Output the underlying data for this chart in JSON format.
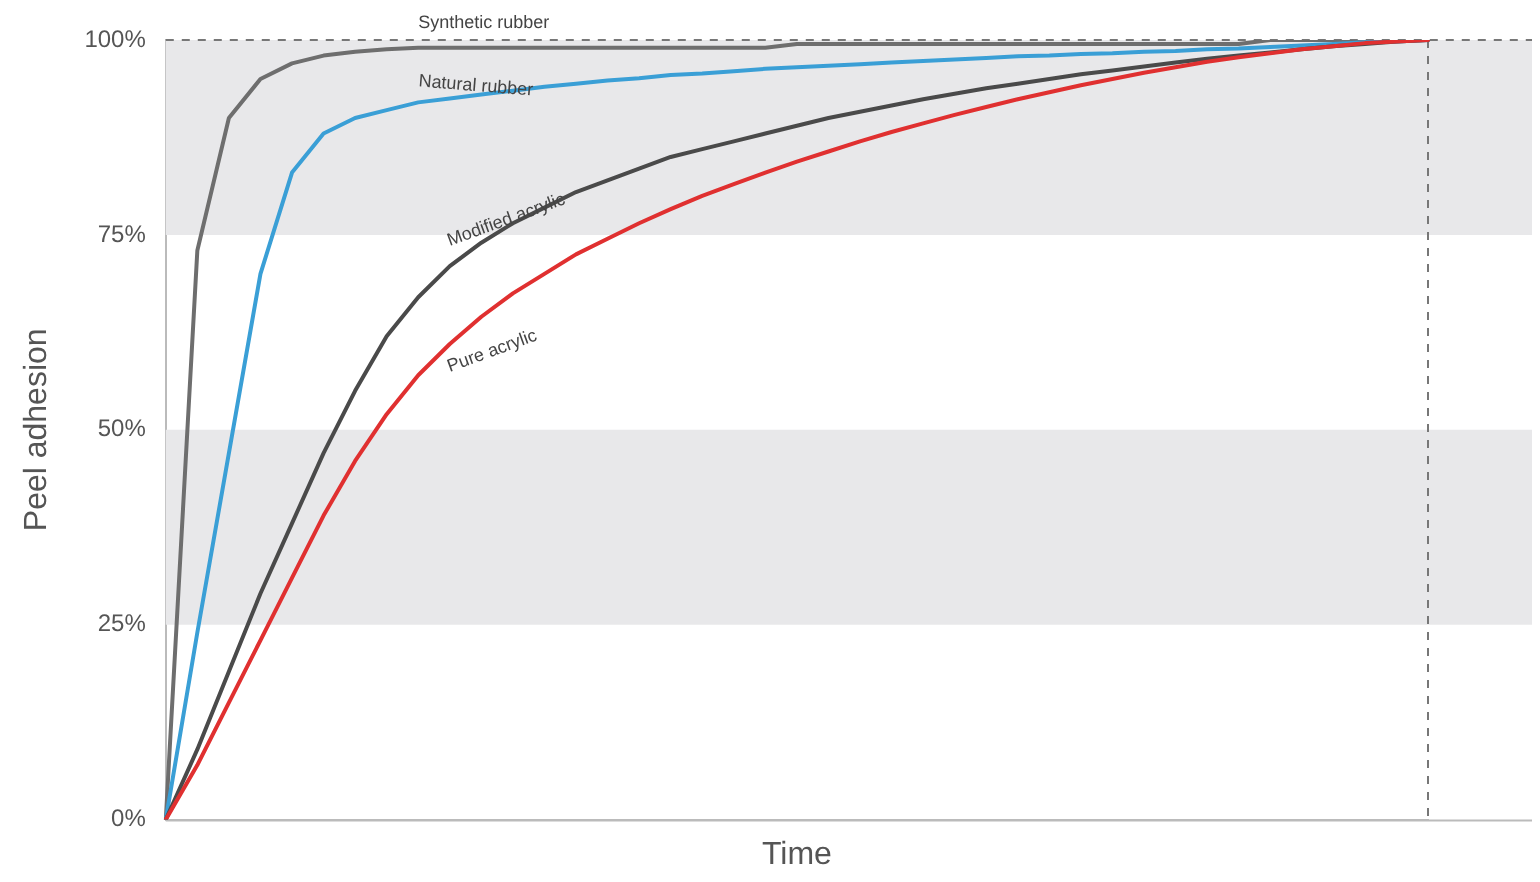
{
  "chart_data": {
    "type": "line",
    "xlabel": "Time",
    "ylabel": "Peel adhesion",
    "categories": [
      null,
      null,
      null,
      null,
      null,
      null,
      null,
      null,
      null,
      null,
      null,
      null,
      null,
      null,
      null,
      null,
      null,
      null,
      null,
      null,
      null,
      null,
      null,
      null,
      null,
      null,
      null,
      null,
      null,
      null,
      null,
      null,
      null,
      null,
      null,
      null,
      null,
      null,
      null,
      null,
      null
    ],
    "ylim": [
      0,
      100
    ],
    "yticks": [
      {
        "value": 0,
        "label": "0%"
      },
      {
        "value": 25,
        "label": "25%"
      },
      {
        "value": 50,
        "label": "50%"
      },
      {
        "value": 75,
        "label": "75%"
      },
      {
        "value": 100,
        "label": "100%"
      }
    ],
    "tick_labels": "y",
    "grid": false,
    "legend": false,
    "marker": "none",
    "line_style": "solid",
    "bands": [
      {
        "axis": "y",
        "from": 25,
        "to": 50,
        "color": "#e8e8ea"
      },
      {
        "axis": "y",
        "from": 75,
        "to": 100,
        "color": "#e8e8ea"
      }
    ],
    "series": [
      {
        "name": "Synthetic rubber",
        "color": "#6e6e6e",
        "values": [
          0,
          73,
          90,
          95,
          97,
          98,
          98.5,
          98.8,
          99,
          99,
          99,
          99,
          99,
          99,
          99,
          99,
          99,
          99,
          99,
          99,
          99.5,
          99.5,
          99.5,
          99.5,
          99.5,
          99.5,
          99.5,
          99.5,
          99.5,
          99.5,
          99.5,
          99.5,
          99.5,
          99.5,
          99.5,
          100,
          100,
          100,
          100,
          100,
          100
        ]
      },
      {
        "name": "Natural rubber",
        "color": "#3a9fd6",
        "values": [
          0,
          24,
          47,
          70,
          83,
          88,
          90,
          91,
          92,
          92.5,
          93,
          93.5,
          94,
          94.4,
          94.8,
          95.1,
          95.5,
          95.7,
          96,
          96.3,
          96.5,
          96.7,
          96.9,
          97.1,
          97.3,
          97.5,
          97.7,
          97.9,
          98,
          98.2,
          98.3,
          98.5,
          98.6,
          98.8,
          98.9,
          99.1,
          99.3,
          99.5,
          99.7,
          99.8,
          100
        ]
      },
      {
        "name": "Modified acrylic",
        "color": "#4a4a4a",
        "values": [
          0,
          9,
          19,
          29,
          38,
          47,
          55,
          62,
          67,
          71,
          74,
          76.5,
          78.5,
          80.5,
          82,
          83.5,
          85,
          86,
          87,
          88,
          89,
          90,
          90.8,
          91.6,
          92.4,
          93.1,
          93.8,
          94.4,
          95,
          95.6,
          96.1,
          96.6,
          97.1,
          97.6,
          98,
          98.4,
          98.8,
          99.2,
          99.5,
          99.8,
          100
        ]
      },
      {
        "name": "Pure acrylic",
        "color": "#e03030",
        "values": [
          0,
          7,
          15,
          23,
          31,
          39,
          46,
          52,
          57,
          61,
          64.5,
          67.5,
          70,
          72.5,
          74.5,
          76.5,
          78.3,
          80,
          81.5,
          83,
          84.4,
          85.7,
          87,
          88.2,
          89.3,
          90.4,
          91.4,
          92.4,
          93.3,
          94.2,
          95,
          95.8,
          96.5,
          97.2,
          97.8,
          98.3,
          98.8,
          99.2,
          99.6,
          99.8,
          100
        ]
      }
    ]
  }
}
